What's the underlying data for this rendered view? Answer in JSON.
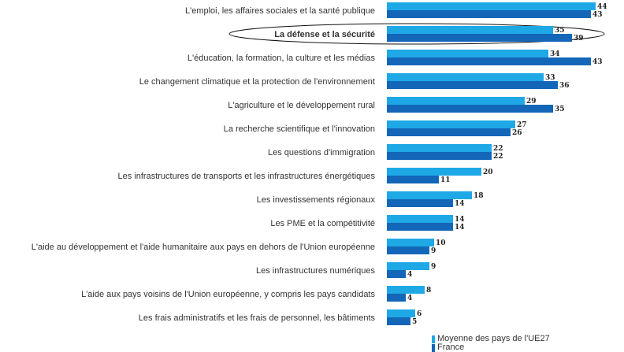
{
  "chart_data": {
    "type": "bar",
    "orientation": "horizontal",
    "categories": [
      "L'emploi, les affaires sociales et la santé publique",
      "La défense et la sécurité",
      "L'éducation, la formation, la culture et les médias",
      "Le changement climatique et la protection de l'environnement",
      "L'agriculture et le développement rural",
      "La recherche scientifique et l'innovation",
      "Les questions d'immigration",
      "Les infrastructures de transports et les infrastructures énergétiques",
      "Les investissements régionaux",
      "Les PME et la compétitivité",
      "L'aide au développement et l'aide humanitaire aux pays en dehors de l'Union européenne",
      "Les infrastructures numériques",
      "L'aide aux pays voisins de l'Union européenne, y compris les pays candidats",
      "Les frais administratifs et les frais de personnel, les bâtiments"
    ],
    "highlighted_category_index": 1,
    "series": [
      {
        "name": "Moyenne des pays de l'UE27",
        "color": "#1EA8E6",
        "values": [
          44,
          35,
          34,
          33,
          29,
          27,
          22,
          20,
          18,
          14,
          10,
          9,
          8,
          6
        ]
      },
      {
        "name": "France",
        "color": "#1366B8",
        "values": [
          43,
          39,
          43,
          36,
          35,
          26,
          22,
          11,
          14,
          14,
          9,
          4,
          4,
          5
        ]
      }
    ],
    "xlim": [
      0,
      44
    ],
    "title": "",
    "xlabel": "",
    "ylabel": "",
    "legend_position": "bottom-right"
  },
  "legend": {
    "items": [
      {
        "label": "Moyenne des pays de l'UE27",
        "color": "#1EA8E6"
      },
      {
        "label": "France",
        "color": "#1366B8"
      }
    ]
  }
}
